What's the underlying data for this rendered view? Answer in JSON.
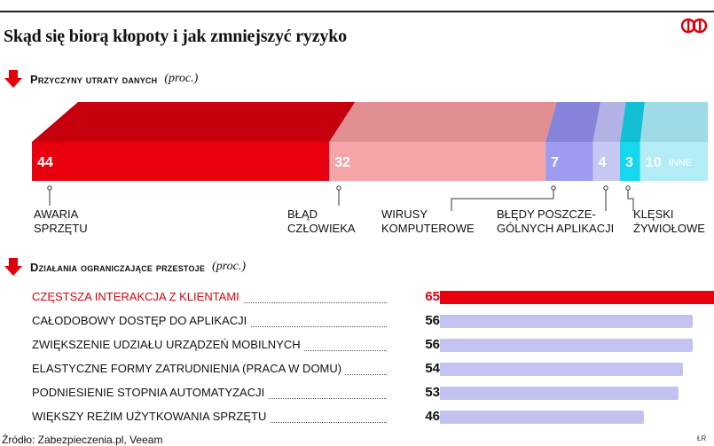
{
  "title": "Skąd się biorą kłopoty i jak zmniejszyć ryzyko",
  "logo_icon": "rp-logo",
  "credit": "ŁR",
  "source": "Źródło: Zabezpieczenia.pl, Veeam",
  "sections": [
    {
      "title": "Przyczyny utraty danych",
      "unit": "(proc.)"
    },
    {
      "title": "Działania ograniczające przestoje",
      "unit": "(proc.)"
    }
  ],
  "chart_data": [
    {
      "type": "bar",
      "orientation": "stacked-horizontal",
      "title": "Przyczyny utraty danych",
      "unit": "(proc.)",
      "categories": [
        "AWARIA SPRZĘTU",
        "BŁĄD CZŁOWIEKA",
        "WIRUSY KOMPUTEROWE",
        "BŁĘDY POSZCZEGÓLNYCH APLIKACJI",
        "KLĘSKI ŻYWIOŁOWE",
        "INNE"
      ],
      "display_labels": [
        "AWARIA\nSPRZĘTU",
        "BŁĄD\nCZŁOWIEKA",
        "WIRUSY\nKOMPUTEROWE",
        "BŁĘDY POSZCZE-\nGÓLNYCH APLIKACJI",
        "KLĘSKI\nŻYWIOŁOWE",
        "INNE"
      ],
      "values": [
        44,
        32,
        7,
        4,
        3,
        10
      ],
      "colors": [
        "#e8000e",
        "#f5a5a8",
        "#9d9cf0",
        "#c7c7f3",
        "#16d7ee",
        "#b3ecf5"
      ],
      "top_colors": [
        "#c5000c",
        "#e28f93",
        "#8584d8",
        "#b2b2e4",
        "#12bfd4",
        "#9fdbe6"
      ]
    },
    {
      "type": "bar",
      "orientation": "horizontal",
      "title": "Działania ograniczające przestoje",
      "unit": "(proc.)",
      "categories": [
        "CZĘSTSZA INTERAKCJA Z KLIENTAMI",
        "CAŁODOBOWY DOSTĘP DO APLIKACJI",
        "ZWIĘKSZENIE UDZIAŁU URZĄDZEŃ MOBILNYCH",
        "ELASTYCZNE FORMY ZATRUDNIENIA (PRACA W DOMU)",
        "PODNIESIENIE STOPNIA AUTOMATYZACJI",
        "WIĘKSZY REŻIM UŻYTKOWANIA SPRZĘTU"
      ],
      "values": [
        65,
        56,
        56,
        54,
        53,
        46
      ],
      "highlight_index": 0,
      "colors": {
        "highlight": "#e8000e",
        "default": "#c3c3f2"
      }
    }
  ]
}
